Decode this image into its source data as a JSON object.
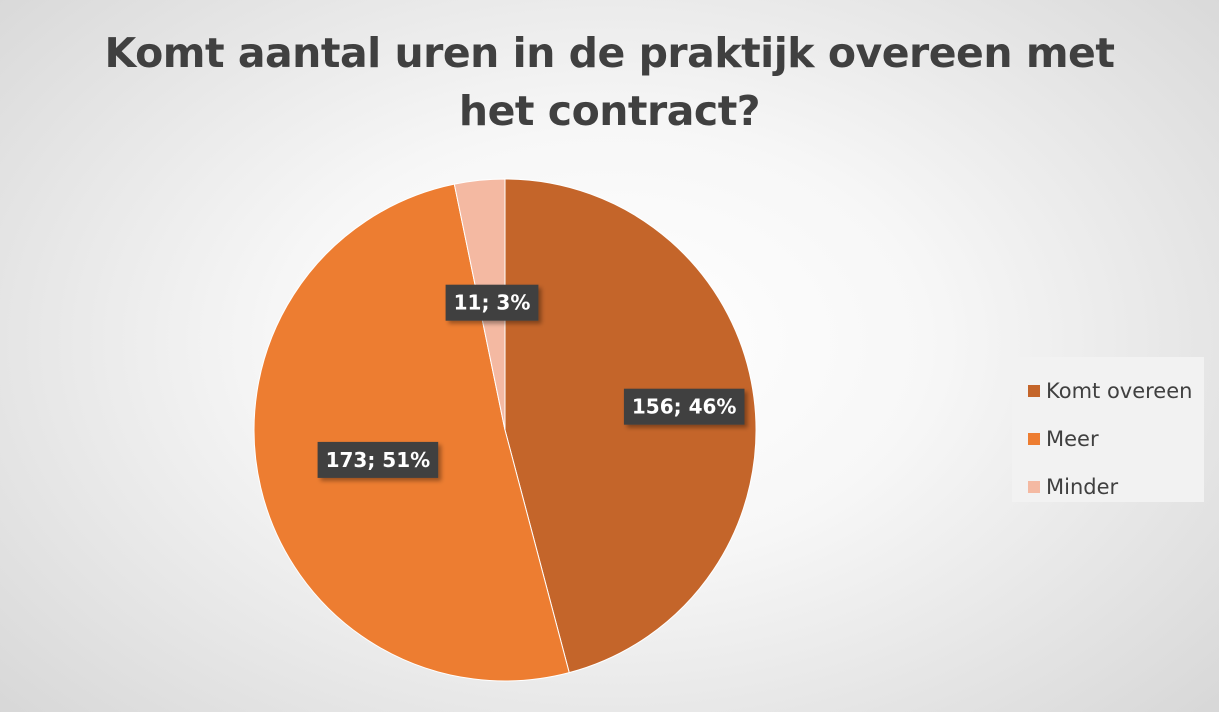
{
  "chart_data": {
    "type": "pie",
    "title": "Komt aantal uren in de praktijk overeen met het contract?",
    "title_lines": [
      "Komt aantal uren in de praktijk overeen met",
      "het contract?"
    ],
    "slices": [
      {
        "label": "Komt overeen",
        "value": 156,
        "percent": "46%",
        "data_label": "156; 46%",
        "color": "#c4652a"
      },
      {
        "label": "Meer",
        "value": 173,
        "percent": "51%",
        "data_label": "173; 51%",
        "color": "#ed7d31"
      },
      {
        "label": "Minder",
        "value": 11,
        "percent": "3%",
        "data_label": "11; 3%",
        "color": "#f4b9a2"
      }
    ],
    "legend_position": "right",
    "data_label_style": "dark box, white bold text"
  }
}
